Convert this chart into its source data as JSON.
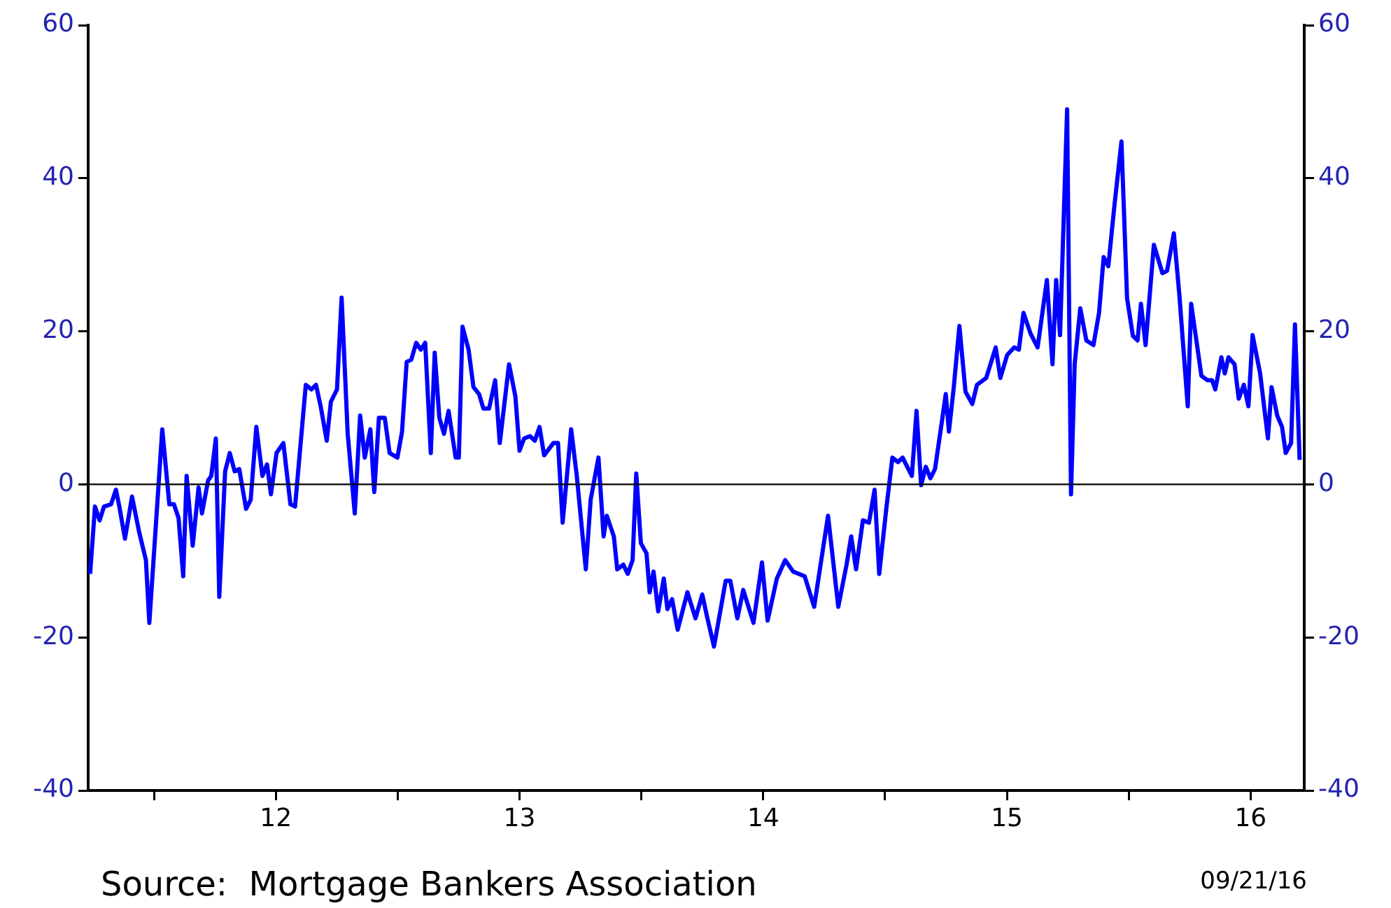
{
  "chart_data": {
    "type": "line",
    "marker": "none",
    "line_style": "solid",
    "x": [
      11.238,
      11.258,
      11.277,
      11.295,
      11.324,
      11.344,
      11.358,
      11.381,
      11.41,
      11.439,
      11.467,
      11.481,
      11.511,
      11.534,
      11.563,
      11.582,
      11.601,
      11.62,
      11.634,
      11.659,
      11.683,
      11.697,
      11.722,
      11.735,
      11.754,
      11.768,
      11.792,
      11.811,
      11.831,
      11.85,
      11.878,
      11.897,
      11.92,
      11.945,
      11.964,
      11.98,
      12.003,
      12.031,
      12.06,
      12.079,
      12.123,
      12.146,
      12.165,
      12.184,
      12.209,
      12.226,
      12.251,
      12.27,
      12.295,
      12.324,
      12.346,
      12.365,
      12.388,
      12.404,
      12.423,
      12.447,
      12.467,
      12.499,
      12.518,
      12.537,
      12.556,
      12.576,
      12.595,
      12.613,
      12.636,
      12.652,
      12.671,
      12.69,
      12.709,
      12.738,
      12.751,
      12.766,
      12.791,
      12.811,
      12.834,
      12.852,
      12.875,
      12.9,
      12.919,
      12.957,
      12.983,
      13.0,
      13.019,
      13.043,
      13.063,
      13.082,
      13.101,
      13.139,
      13.158,
      13.177,
      13.212,
      13.235,
      13.272,
      13.292,
      13.324,
      13.345,
      13.358,
      13.387,
      13.401,
      13.426,
      13.444,
      13.464,
      13.479,
      13.498,
      13.521,
      13.534,
      13.55,
      13.569,
      13.592,
      13.607,
      13.626,
      13.649,
      13.689,
      13.722,
      13.75,
      13.769,
      13.798,
      13.846,
      13.865,
      13.894,
      13.918,
      13.96,
      13.995,
      14.018,
      14.056,
      14.09,
      14.123,
      14.17,
      14.209,
      14.266,
      14.308,
      14.342,
      14.361,
      14.381,
      14.409,
      14.434,
      14.457,
      14.476,
      14.505,
      14.53,
      14.553,
      14.572,
      14.61,
      14.629,
      14.648,
      14.667,
      14.686,
      14.705,
      14.734,
      14.749,
      14.762,
      14.782,
      14.805,
      14.83,
      14.858,
      14.877,
      14.915,
      14.954,
      14.973,
      15.001,
      15.03,
      15.049,
      15.068,
      15.097,
      15.126,
      15.164,
      15.187,
      15.202,
      15.218,
      15.247,
      15.263,
      15.278,
      15.301,
      15.326,
      15.355,
      15.378,
      15.397,
      15.416,
      15.441,
      15.47,
      15.493,
      15.517,
      15.536,
      15.55,
      15.569,
      15.603,
      15.638,
      15.657,
      15.685,
      15.708,
      15.742,
      15.756,
      15.798,
      15.823,
      15.842,
      15.855,
      15.88,
      15.894,
      15.909,
      15.934,
      15.951,
      15.972,
      15.991,
      16.008,
      16.039,
      16.071,
      16.086,
      16.109,
      16.129,
      16.144,
      16.166,
      16.182,
      16.201
    ],
    "series": [
      {
        "color": "#0000ff",
        "values": [
          -11.7,
          -2.9,
          -4.7,
          -2.9,
          -2.6,
          -0.7,
          -2.9,
          -7.1,
          -1.6,
          -6.2,
          -9.9,
          -18.1,
          -3.8,
          7.2,
          -2.6,
          -2.6,
          -4.4,
          -12.0,
          1.1,
          -8.0,
          -0.4,
          -3.8,
          0.5,
          1.1,
          6.0,
          -14.7,
          1.7,
          4.1,
          1.7,
          2.0,
          -3.2,
          -2.0,
          7.5,
          1.1,
          2.6,
          -1.3,
          4.1,
          5.4,
          -2.6,
          -2.9,
          13.0,
          12.4,
          13.0,
          10.2,
          5.7,
          10.8,
          12.4,
          24.4,
          6.6,
          -3.8,
          9.0,
          3.5,
          7.2,
          -1.0,
          8.7,
          8.7,
          4.1,
          3.5,
          6.9,
          16.0,
          16.3,
          18.5,
          17.6,
          18.5,
          4.1,
          17.2,
          8.7,
          6.6,
          9.6,
          3.5,
          3.5,
          20.6,
          17.6,
          12.7,
          11.8,
          9.9,
          9.9,
          13.6,
          5.4,
          15.7,
          11.5,
          4.4,
          6.0,
          6.3,
          5.7,
          7.5,
          3.8,
          5.4,
          5.4,
          -5.0,
          7.2,
          1.1,
          -11.1,
          -2.0,
          3.5,
          -6.8,
          -4.1,
          -6.8,
          -11.1,
          -10.5,
          -11.7,
          -9.9,
          1.4,
          -7.7,
          -9.0,
          -14.1,
          -11.4,
          -16.6,
          -12.3,
          -16.3,
          -15.0,
          -19.0,
          -14.1,
          -17.5,
          -14.4,
          -17.2,
          -21.2,
          -12.6,
          -12.6,
          -17.5,
          -13.8,
          -18.1,
          -10.2,
          -17.8,
          -12.3,
          -9.9,
          -11.4,
          -12.0,
          -16.0,
          -4.1,
          -16.0,
          -10.5,
          -6.8,
          -11.1,
          -4.7,
          -5.0,
          -0.7,
          -11.7,
          -3.2,
          3.5,
          2.9,
          3.5,
          1.1,
          9.6,
          -0.1,
          2.3,
          0.8,
          2.0,
          8.4,
          11.8,
          6.9,
          12.7,
          20.7,
          12.1,
          10.5,
          13.0,
          13.9,
          17.9,
          13.9,
          16.9,
          17.9,
          17.6,
          22.4,
          19.7,
          17.9,
          26.7,
          15.7,
          26.7,
          19.5,
          49.0,
          -1.3,
          15.7,
          23.0,
          18.8,
          18.2,
          22.4,
          29.7,
          28.5,
          36.4,
          44.8,
          24.3,
          19.4,
          18.8,
          23.6,
          18.2,
          31.3,
          27.6,
          27.9,
          32.8,
          24.6,
          10.2,
          23.6,
          14.2,
          13.6,
          13.6,
          12.4,
          16.6,
          14.5,
          16.6,
          15.7,
          11.2,
          13.0,
          10.2,
          19.5,
          14.5,
          6.0,
          12.7,
          9.0,
          7.5,
          4.1,
          5.4,
          20.9,
          3.2
        ]
      }
    ],
    "xlim": [
      11.23,
      16.22
    ],
    "xticks": [
      {
        "value": 11.5,
        "label": null
      },
      12,
      {
        "value": 12.5,
        "label": null
      },
      13,
      {
        "value": 13.5,
        "label": null
      },
      14,
      {
        "value": 14.5,
        "label": null
      },
      15,
      {
        "value": 15.5,
        "label": null
      },
      16
    ],
    "ylim": [
      -40,
      60
    ],
    "yticks": [
      -40,
      -20,
      0,
      20,
      40,
      60
    ],
    "y2lim": [
      -40,
      60
    ],
    "y2ticks": [
      -40,
      -20,
      0,
      20,
      40,
      60
    ],
    "ref_lines": [
      {
        "axis": "y",
        "value": 0,
        "color": "#000000"
      }
    ],
    "annotations": [
      "Source:  Mortgage Bankers Association",
      "09/21/16"
    ]
  }
}
